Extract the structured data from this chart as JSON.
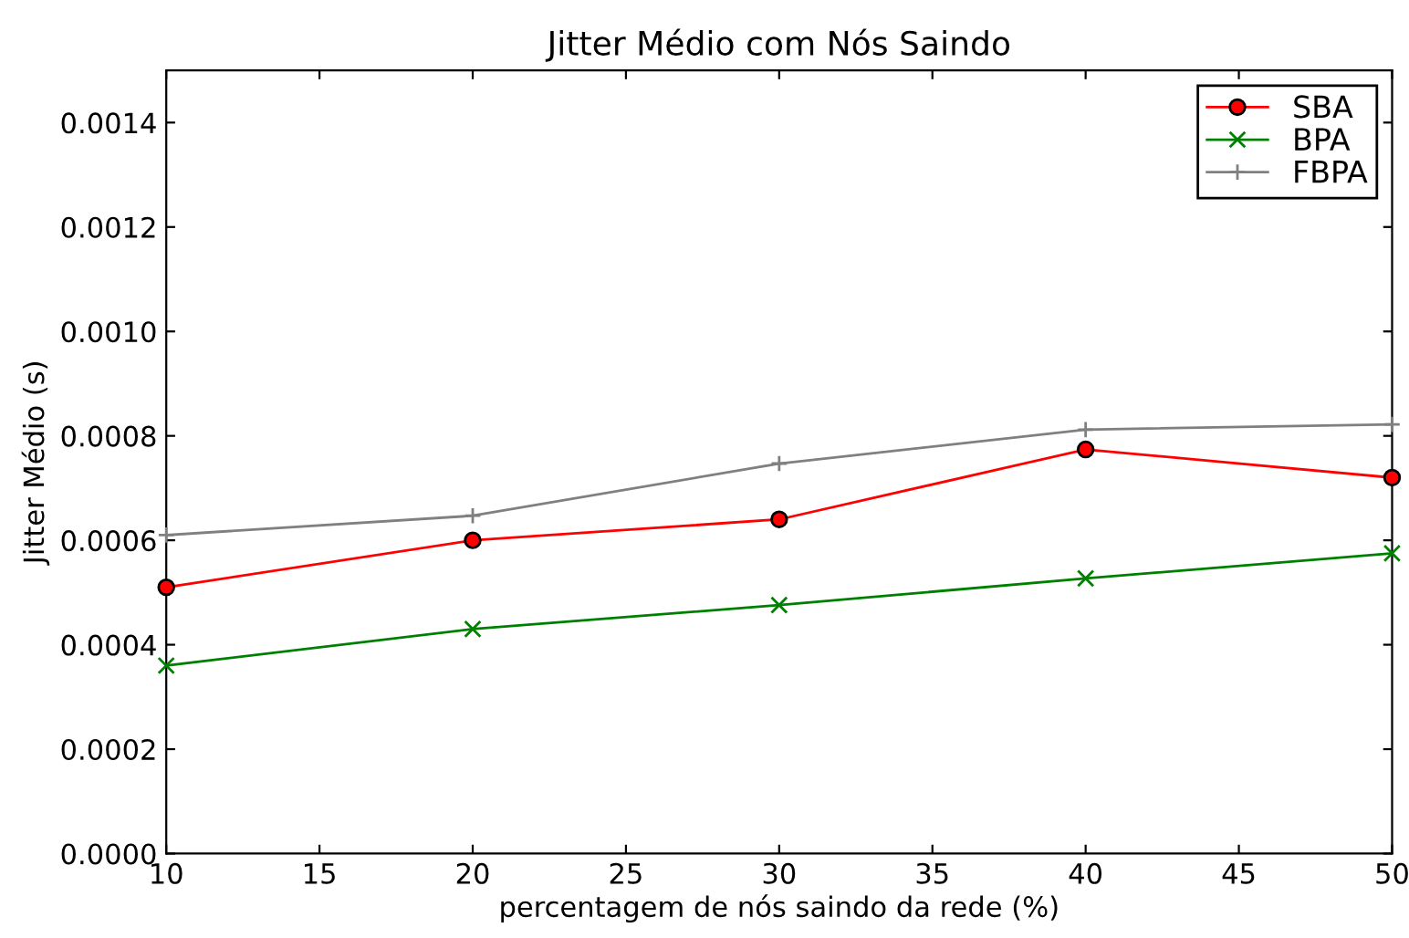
{
  "chart_data": {
    "type": "line",
    "title": "Jitter Médio com Nós Saindo",
    "xlabel": "percentagem de nós saindo da rede (%)",
    "ylabel": "Jitter Médio (s)",
    "x": [
      10,
      20,
      30,
      40,
      50
    ],
    "series": [
      {
        "name": "SBA",
        "color": "#ff0000",
        "marker": "circle",
        "values": [
          0.00051,
          0.0006,
          0.00064,
          0.000774,
          0.00072
        ]
      },
      {
        "name": "BPA",
        "color": "#008000",
        "marker": "cross",
        "values": [
          0.00036,
          0.00043,
          0.000476,
          0.000527,
          0.000575
        ]
      },
      {
        "name": "FBPA",
        "color": "#808080",
        "marker": "plus",
        "values": [
          0.00061,
          0.000647,
          0.000747,
          0.000812,
          0.000822
        ]
      }
    ],
    "xlim": [
      10,
      50
    ],
    "xticks": [
      10,
      15,
      20,
      25,
      30,
      35,
      40,
      45,
      50
    ],
    "ylim": [
      0,
      0.0015
    ],
    "yticks": [
      {
        "value": 0,
        "label": "0.0000"
      },
      {
        "value": 0.0002,
        "label": "0.0002"
      },
      {
        "value": 0.0004,
        "label": "0.0004"
      },
      {
        "value": 0.0006,
        "label": "0.0006"
      },
      {
        "value": 0.0008,
        "label": "0.0008"
      },
      {
        "value": 0.001,
        "label": "0.0010"
      },
      {
        "value": 0.0012,
        "label": "0.0012"
      },
      {
        "value": 0.0014,
        "label": "0.0014"
      }
    ],
    "grid": false,
    "legend": "top right",
    "line_style": "solid"
  }
}
